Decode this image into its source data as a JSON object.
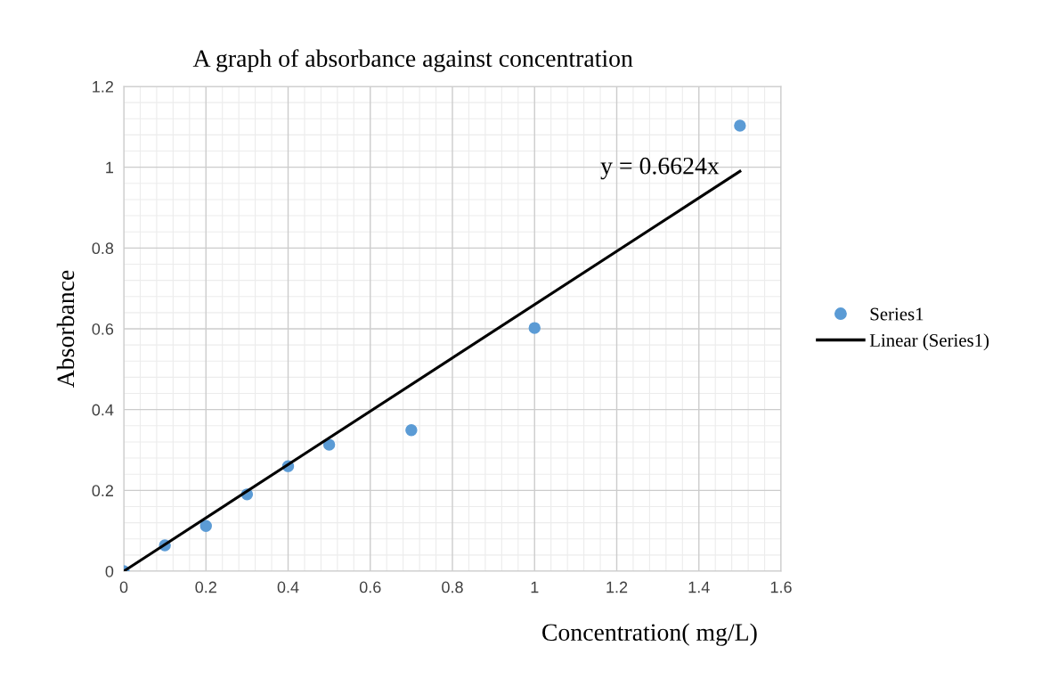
{
  "chart_data": {
    "type": "scatter",
    "title": "A graph of absorbance against concentration",
    "xlabel": "Concentration( mg/L)",
    "ylabel": "Absorbance",
    "series": [
      {
        "name": "Series1",
        "marker": "circle",
        "color": "#5b9bd5",
        "x": [
          0,
          0.1,
          0.2,
          0.3,
          0.4,
          0.5,
          0.7,
          1.0,
          1.5
        ],
        "values": [
          0,
          0.064,
          0.112,
          0.19,
          0.26,
          0.313,
          0.349,
          0.602,
          1.103
        ]
      },
      {
        "name": "Linear (Series1)",
        "type": "line",
        "marker": "none",
        "line_style": "solid",
        "color": "#000000",
        "x": [
          0,
          1.5
        ],
        "values": [
          0,
          0.99
        ]
      }
    ],
    "annotations": [
      {
        "text": "y = 0.6624x",
        "x": 1.45,
        "y": 0.97
      }
    ],
    "xlim": [
      0,
      1.6
    ],
    "xticks": [
      0,
      0.2,
      0.4,
      0.6,
      0.8,
      1,
      1.2,
      1.4,
      1.6
    ],
    "ylim": [
      0,
      1.2
    ],
    "yticks": [
      0,
      0.2,
      0.4,
      0.6,
      0.8,
      1,
      1.2
    ],
    "grid": true,
    "legend": "right"
  }
}
